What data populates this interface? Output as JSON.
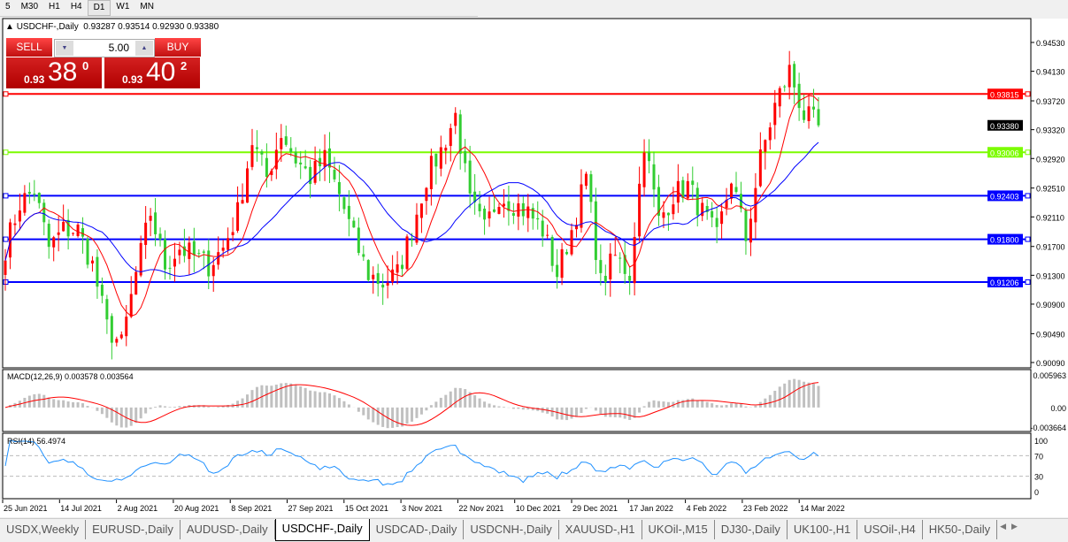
{
  "timeframes": [
    {
      "label": "5"
    },
    {
      "label": "M30"
    },
    {
      "label": "H1"
    },
    {
      "label": "H4"
    },
    {
      "label": "D1",
      "active": true
    },
    {
      "label": "W1"
    },
    {
      "label": "MN"
    }
  ],
  "header": {
    "symbol": "USDCHF-,Daily",
    "ohlc": "0.93287 0.93514 0.92930 0.93380"
  },
  "trade_panel": {
    "sell_label": "SELL",
    "buy_label": "BUY",
    "lot": "5.00",
    "sell": {
      "prefix": "0.93",
      "big": "38",
      "sup": "0"
    },
    "buy": {
      "prefix": "0.93",
      "big": "40",
      "sup": "2"
    }
  },
  "colors": {
    "bull": "#ff0000",
    "bear": "#32cd32",
    "ma_fast": "#ff0000",
    "ma_slow": "#0000ff",
    "macd_hist": "#c0c0c0",
    "macd_signal": "#ff0000",
    "rsi": "#1e90ff"
  },
  "chart_data": {
    "type": "candlestick",
    "symbol": "USDCHF-,Daily",
    "ylim": [
      0.9009,
      0.9453
    ],
    "price_ticks": [
      "0.94530",
      "0.94130",
      "0.93720",
      "0.93320",
      "0.92920",
      "0.92510",
      "0.92110",
      "0.91700",
      "0.91300",
      "0.90900",
      "0.90490",
      "0.90090"
    ],
    "current_price": "0.93380",
    "approx_closes": [
      0.9168,
      0.923,
      0.9248,
      0.9168,
      0.9193,
      0.9193,
      0.9144,
      0.9058,
      0.9033,
      0.9132,
      0.9217,
      0.9144,
      0.9168,
      0.9156,
      0.9144,
      0.9168,
      0.9217,
      0.9316,
      0.9266,
      0.9328,
      0.9291,
      0.9266,
      0.9291,
      0.9242,
      0.9181,
      0.9132,
      0.9119,
      0.9132,
      0.9193,
      0.9266,
      0.9303,
      0.9352,
      0.923,
      0.9193,
      0.9242,
      0.923,
      0.9217,
      0.9193,
      0.9132,
      0.9193,
      0.9266,
      0.9119,
      0.9156,
      0.9132,
      0.9316,
      0.9205,
      0.9242,
      0.9254,
      0.9217,
      0.9181,
      0.9266,
      0.9181,
      0.9291,
      0.9365,
      0.9414,
      0.9352,
      0.9338
    ],
    "horizontal_lines": [
      {
        "value": "0.93815",
        "color": "#ff0000"
      },
      {
        "value": "0.93006",
        "color": "#7cfc00"
      },
      {
        "value": "0.92403",
        "color": "#0000ff"
      },
      {
        "value": "0.91800",
        "color": "#0000ff"
      },
      {
        "value": "0.91206",
        "color": "#0000ff"
      }
    ],
    "dates": [
      "25 Jun 2021",
      "14 Jul 2021",
      "2 Aug 2021",
      "20 Aug 2021",
      "8 Sep 2021",
      "27 Sep 2021",
      "15 Oct 2021",
      "3 Nov 2021",
      "22 Nov 2021",
      "10 Dec 2021",
      "29 Dec 2021",
      "17 Jan 2022",
      "4 Feb 2022",
      "23 Feb 2022",
      "14 Mar 2022"
    ],
    "macd": {
      "label": "MACD(12,26,9) 0.003578 0.003564",
      "ylim": [
        -0.003664,
        0.005963
      ],
      "ticks": [
        "0.005963",
        "0.00",
        "-0.003664"
      ]
    },
    "rsi": {
      "label": "RSI(14) 56.4974",
      "ylim": [
        0,
        100
      ],
      "ticks": [
        "100",
        "70",
        "30",
        "0"
      ],
      "levels": [
        70,
        30
      ]
    }
  },
  "tabs": [
    {
      "label": "USDX,Weekly"
    },
    {
      "label": "EURUSD-,Daily"
    },
    {
      "label": "AUDUSD-,Daily"
    },
    {
      "label": "USDCHF-,Daily",
      "active": true
    },
    {
      "label": "USDCAD-,Daily"
    },
    {
      "label": "USDCNH-,Daily"
    },
    {
      "label": "XAUUSD-,H1"
    },
    {
      "label": "UKOil-,M15"
    },
    {
      "label": "DJ30-,Daily"
    },
    {
      "label": "UK100-,H1"
    },
    {
      "label": "USOil-,H4"
    },
    {
      "label": "HK50-,Daily"
    }
  ]
}
